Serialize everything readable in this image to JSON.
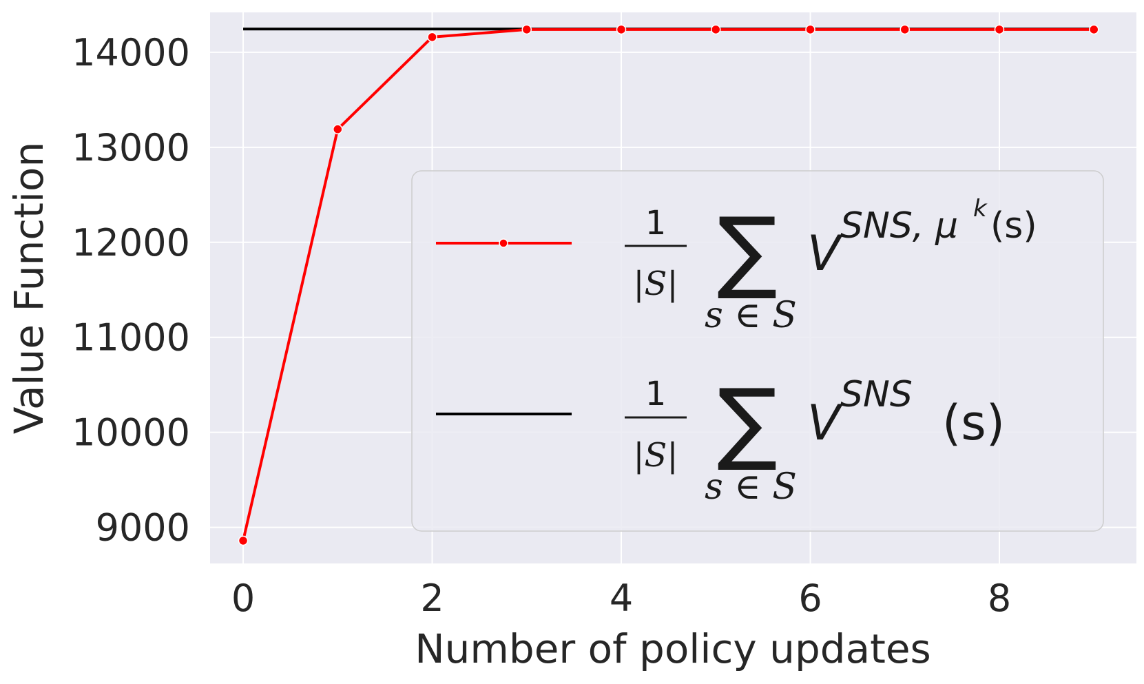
{
  "chart_data": {
    "type": "line",
    "xlabel": "Number of policy updates",
    "ylabel": "Value Function",
    "xlim": [
      -0.35,
      9.45
    ],
    "ylim": [
      8620,
      14420
    ],
    "x_ticks": [
      0,
      2,
      4,
      6,
      8
    ],
    "y_ticks": [
      9000,
      10000,
      11000,
      12000,
      13000,
      14000
    ],
    "grid": true,
    "legend_placement": "center-right",
    "series": [
      {
        "color": "#ff0000",
        "marker": "circle",
        "x": [
          0,
          1,
          2,
          3,
          4,
          5,
          6,
          7,
          8,
          9
        ],
        "y": [
          8860,
          13190,
          14160,
          14240,
          14240,
          14240,
          14240,
          14240,
          14240,
          14240
        ]
      },
      {
        "color": "#000000",
        "marker": "none",
        "x": [
          0,
          9
        ],
        "y": [
          14245,
          14245
        ]
      }
    ],
    "legend": [
      {
        "frac_num": "1",
        "frac_den": "|S|",
        "sum_symbol": "∑",
        "sum_sub": "s ∈ S",
        "base": "V",
        "sup": "SNS, μ",
        "sup_k": "k",
        "suffix": "(s)"
      },
      {
        "frac_num": "1",
        "frac_den": "|S|",
        "sum_symbol": "∑",
        "sum_sub": "s ∈ S",
        "base": "V",
        "sup": "SNS",
        "suffix": "(s)"
      }
    ]
  }
}
